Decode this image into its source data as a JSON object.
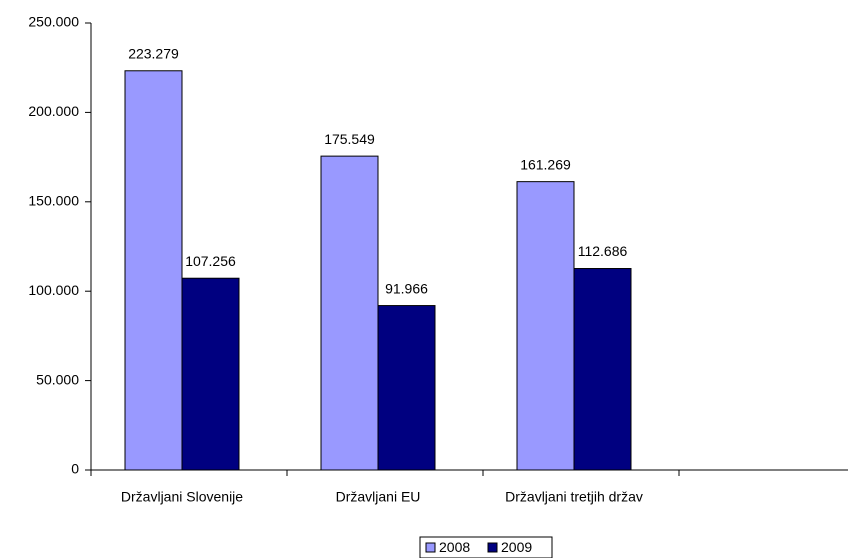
{
  "chart_data": {
    "type": "bar",
    "categories": [
      "Državljani Slovenije",
      "Državljani EU",
      "Državljani tretjih držav",
      null
    ],
    "series": [
      {
        "name": "2008",
        "color": "#9999ff",
        "values": [
          223279,
          175549,
          161269,
          null
        ],
        "value_labels": [
          "223.279",
          "175.549",
          "161.269",
          null
        ]
      },
      {
        "name": "2009",
        "color": "#000080",
        "values": [
          107256,
          91966,
          112686,
          null
        ],
        "value_labels": [
          "107.256",
          "91.966",
          "112.686",
          null
        ]
      }
    ],
    "ylim": [
      0,
      250000
    ],
    "yticks": [
      0,
      {
        "value": 50000,
        "label": "50.000"
      },
      {
        "value": 100000,
        "label": "100.000"
      },
      {
        "value": 150000,
        "label": "150.000"
      },
      {
        "value": 200000,
        "label": "200.000"
      },
      {
        "value": 250000,
        "label": "250.000"
      }
    ],
    "grid": false,
    "legend": "bottom"
  }
}
